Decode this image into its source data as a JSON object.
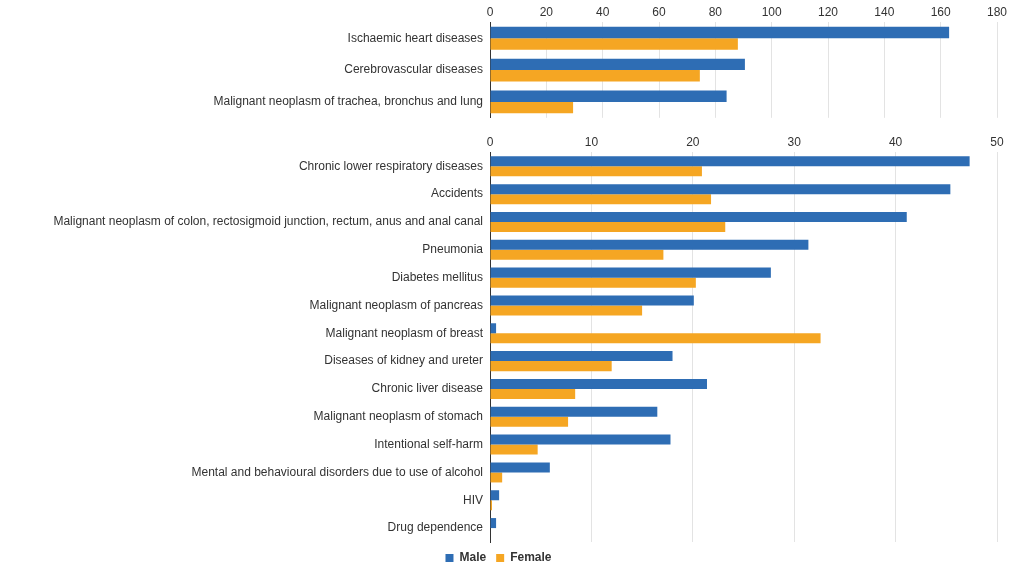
{
  "chart_data": [
    {
      "type": "bar",
      "orientation": "horizontal",
      "categories": [
        "Ischaemic heart diseases",
        "Cerebrovascular diseases",
        "Malignant neoplasm of trachea, bronchus and lung"
      ],
      "series": [
        {
          "color": "#2e6db4",
          "values": [
            163,
            90.5,
            84
          ]
        },
        {
          "color": "#f5a623",
          "values": [
            88,
            74.5,
            29.5
          ]
        }
      ],
      "xlim": [
        0,
        180
      ],
      "xticks": [
        0,
        20,
        40,
        60,
        80,
        100,
        120,
        140,
        160,
        180
      ],
      "grid": "x",
      "legend": false
    },
    {
      "type": "bar",
      "orientation": "horizontal",
      "categories": [
        "Chronic lower respiratory diseases",
        "Accidents",
        "Malignant neoplasm of colon, rectosigmoid junction, rectum, anus and anal canal",
        "Pneumonia",
        "Diabetes mellitus",
        "Malignant neoplasm of pancreas",
        "Malignant neoplasm of breast",
        "Diseases of kidney and ureter",
        "Chronic liver disease",
        "Malignant neoplasm of stomach",
        "Intentional self-harm",
        "Mental and behavioural disorders due to use of alcohol",
        "HIV",
        "Drug dependence"
      ],
      "series": [
        {
          "name": "Male",
          "color": "#2e6db4",
          "values": [
            47.3,
            45.4,
            41.1,
            31.4,
            27.7,
            20.1,
            0.6,
            18.0,
            21.4,
            16.5,
            17.8,
            5.9,
            0.9,
            0.6
          ]
        },
        {
          "name": "Female",
          "color": "#f5a623",
          "values": [
            20.9,
            21.8,
            23.2,
            17.1,
            20.3,
            15.0,
            32.6,
            12.0,
            8.4,
            7.7,
            4.7,
            1.2,
            0.2,
            null
          ]
        }
      ],
      "xlim": [
        0,
        50
      ],
      "xticks": [
        0,
        10,
        20,
        30,
        40,
        50
      ],
      "grid": "x",
      "legend": "bottom"
    }
  ]
}
